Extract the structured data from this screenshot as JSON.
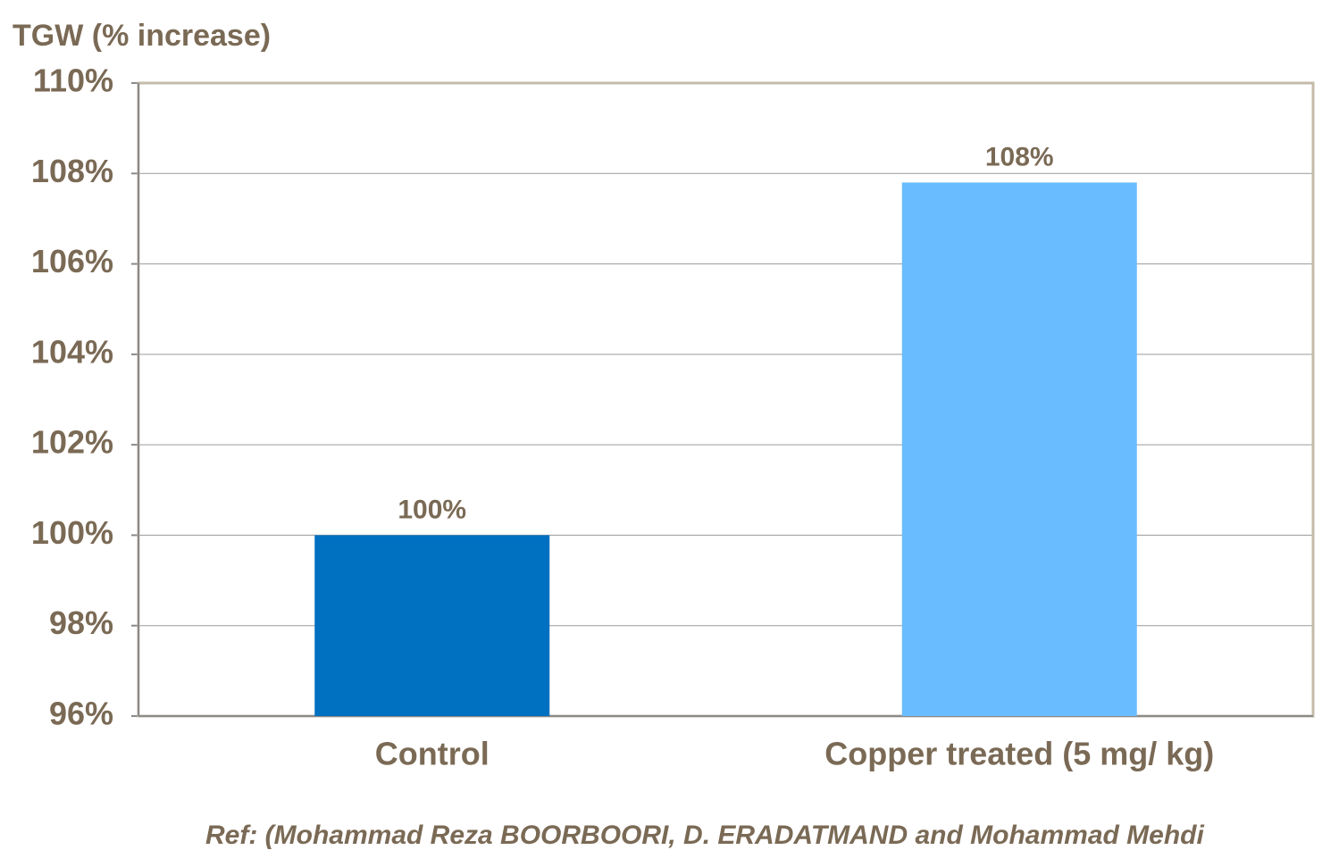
{
  "chart_data": {
    "type": "bar",
    "y_axis_label": "TGW (% increase)",
    "categories": [
      "Control",
      "Copper treated (5 mg/ kg)"
    ],
    "values": [
      100,
      107.8
    ],
    "value_labels": [
      "100%",
      "108%"
    ],
    "colors": [
      "#0070c0",
      "#69bcff"
    ],
    "ylim": [
      96,
      110
    ],
    "yticks": [
      {
        "value": 96,
        "label": "96%"
      },
      {
        "value": 98,
        "label": "98%"
      },
      {
        "value": 100,
        "label": "100%"
      },
      {
        "value": 102,
        "label": "102%"
      },
      {
        "value": 104,
        "label": "104%"
      },
      {
        "value": 106,
        "label": "106%"
      },
      {
        "value": 108,
        "label": "108%"
      },
      {
        "value": 110,
        "label": "110%"
      }
    ],
    "grid": true,
    "source": "Ref: (Mohammad Reza BOORBOORI, D. ERADATMAND and Mohammad Mehdi"
  }
}
